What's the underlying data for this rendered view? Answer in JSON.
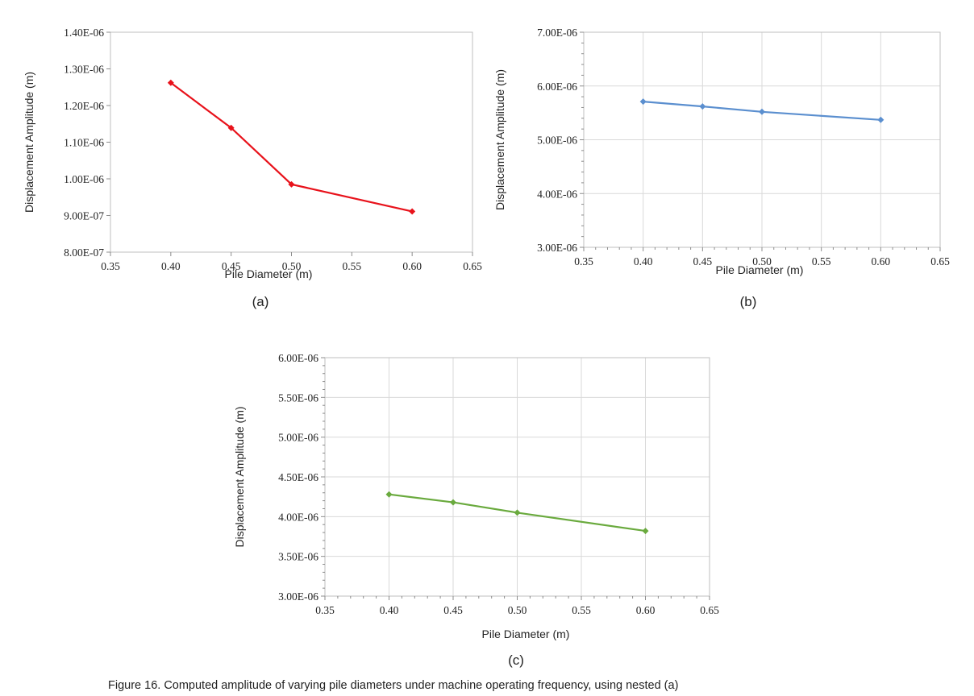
{
  "caption": "Figure 16. Computed amplitude of varying pile diameters under machine operating frequency, using nested (a)",
  "chart_data": [
    {
      "type": "line",
      "panel_label": "(a)",
      "xlabel": "Pile Diameter (m)",
      "ylabel": "Displacement Amplitude (m)",
      "xlim": [
        0.35,
        0.65
      ],
      "ylim": [
        8e-07,
        1.4e-06
      ],
      "x_ticks": [
        "0.35",
        "0.40",
        "0.45",
        "0.50",
        "0.55",
        "0.60",
        "0.65"
      ],
      "y_ticks": [
        "8.00E-07",
        "9.00E-07",
        "1.00E-06",
        "1.10E-06",
        "1.20E-06",
        "1.30E-06",
        "1.40E-06"
      ],
      "grid": "none",
      "color": "#e8121b",
      "series": [
        {
          "x": [
            0.4,
            0.45,
            0.5,
            0.6
          ],
          "y": [
            1.262e-06,
            1.139e-06,
            9.85e-07,
            9.11e-07
          ]
        }
      ]
    },
    {
      "type": "line",
      "panel_label": "(b)",
      "xlabel": "Pile Diameter (m)",
      "ylabel": "Displacement Amplitude (m)",
      "xlim": [
        0.35,
        0.65
      ],
      "ylim": [
        3e-06,
        7e-06
      ],
      "x_ticks": [
        "0.35",
        "0.40",
        "0.45",
        "0.50",
        "0.55",
        "0.60",
        "0.65"
      ],
      "y_ticks": [
        "3.00E-06",
        "4.00E-06",
        "5.00E-06",
        "6.00E-06",
        "7.00E-06"
      ],
      "grid": "both",
      "color": "#5b8fcf",
      "series": [
        {
          "x": [
            0.4,
            0.45,
            0.5,
            0.6
          ],
          "y": [
            5.71e-06,
            5.62e-06,
            5.52e-06,
            5.37e-06
          ]
        }
      ]
    },
    {
      "type": "line",
      "panel_label": "(c)",
      "xlabel": "Pile Diameter (m)",
      "ylabel": "Displacement Amplitude (m)",
      "xlim": [
        0.35,
        0.65
      ],
      "ylim": [
        3e-06,
        6e-06
      ],
      "x_ticks": [
        "0.35",
        "0.40",
        "0.45",
        "0.50",
        "0.55",
        "0.60",
        "0.65"
      ],
      "y_ticks": [
        "3.00E-06",
        "3.50E-06",
        "4.00E-06",
        "4.50E-06",
        "5.00E-06",
        "5.50E-06",
        "6.00E-06"
      ],
      "grid": "both",
      "color": "#6aaa3e",
      "series": [
        {
          "x": [
            0.4,
            0.45,
            0.5,
            0.6
          ],
          "y": [
            4.28e-06,
            4.18e-06,
            4.05e-06,
            3.82e-06
          ]
        }
      ]
    }
  ]
}
